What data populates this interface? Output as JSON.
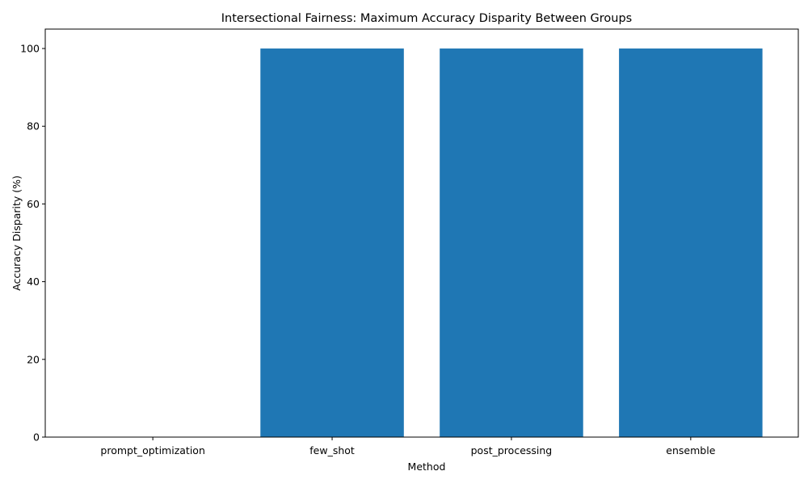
{
  "chart_data": {
    "type": "bar",
    "title": "Intersectional Fairness: Maximum Accuracy Disparity Between Groups",
    "xlabel": "Method",
    "ylabel": "Accuracy Disparity (%)",
    "categories": [
      "prompt_optimization",
      "few_shot",
      "post_processing",
      "ensemble"
    ],
    "values": [
      0,
      100,
      100,
      100
    ],
    "ylim": [
      0,
      105
    ],
    "yticks": [
      0,
      20,
      40,
      60,
      80,
      100
    ],
    "grid": false,
    "legend": "none",
    "bar_color": "#1f77b4"
  }
}
